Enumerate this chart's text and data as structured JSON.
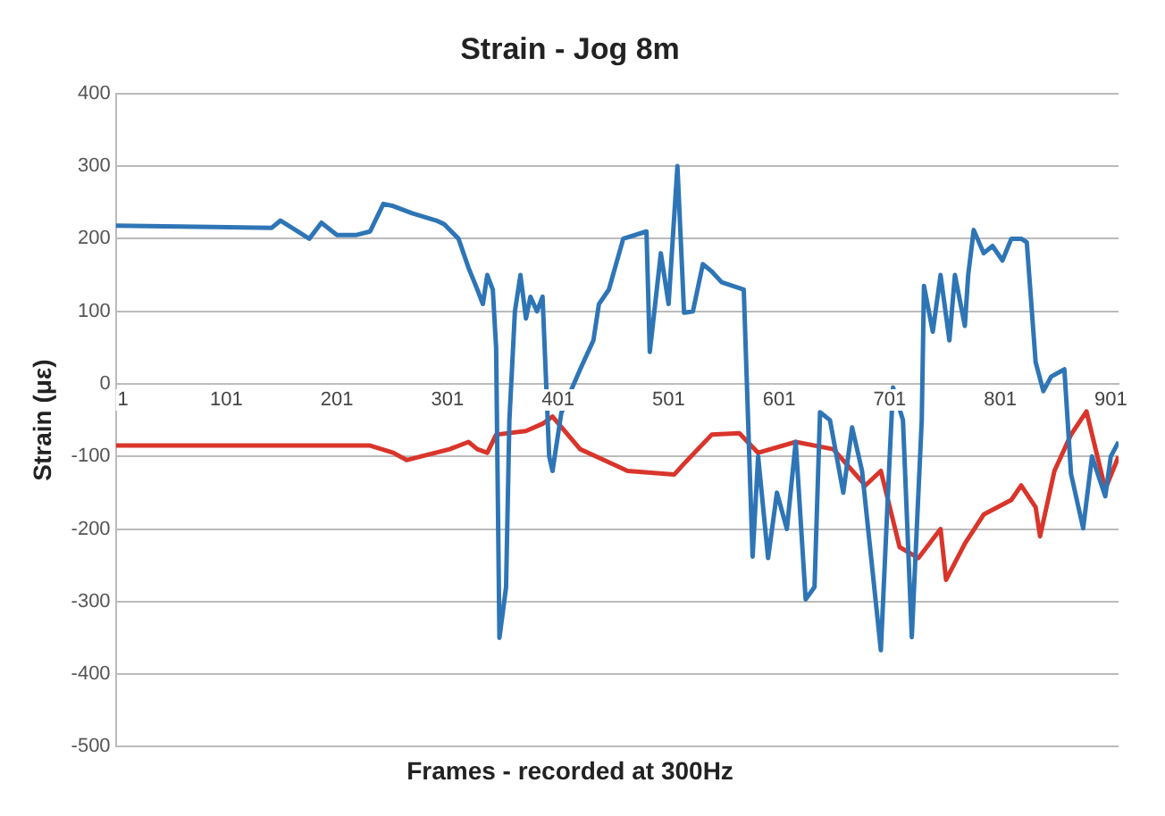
{
  "chart_data": {
    "type": "line",
    "title": "Strain - Jog 8m",
    "xlabel": "Frames - recorded at 300Hz",
    "ylabel": "Strain (με)",
    "xlim": [
      1,
      908
    ],
    "xticks": [
      1,
      101,
      201,
      301,
      401,
      501,
      601,
      701,
      801,
      901
    ],
    "ylim": [
      -500,
      400
    ],
    "yticks": [
      -500,
      -400,
      -300,
      -200,
      -100,
      0,
      100,
      200,
      300,
      400
    ],
    "grid": "y",
    "legend": false,
    "marker": "none",
    "series": [
      {
        "color": "#2e75b6",
        "x": [
          1,
          142,
          150,
          176,
          187,
          201,
          218,
          231,
          243,
          252,
          269,
          291,
          298,
          311,
          320,
          328,
          333,
          337,
          342,
          345,
          348,
          354,
          357,
          362,
          367,
          372,
          376,
          382,
          387,
          393,
          396,
          404,
          421,
          433,
          438,
          447,
          460,
          481,
          484,
          494,
          501,
          509,
          515,
          523,
          532,
          540,
          549,
          569,
          577,
          582,
          591,
          599,
          608,
          616,
          625,
          633,
          638,
          647,
          659,
          667,
          676,
          693,
          701,
          704,
          713,
          721,
          730,
          732,
          740,
          747,
          755,
          760,
          769,
          772,
          777,
          786,
          794,
          803,
          811,
          820,
          825,
          833,
          840,
          847,
          859,
          865,
          876,
          884,
          896,
          901,
          908
        ],
        "values": [
          218,
          215,
          225,
          200,
          222,
          205,
          205,
          210,
          248,
          245,
          235,
          225,
          220,
          200,
          160,
          130,
          110,
          150,
          130,
          50,
          -350,
          -280,
          -50,
          100,
          150,
          90,
          120,
          100,
          120,
          -100,
          -120,
          -40,
          20,
          60,
          110,
          130,
          200,
          210,
          44,
          180,
          110,
          300,
          98,
          100,
          165,
          155,
          140,
          130,
          -238,
          -100,
          -240,
          -150,
          -200,
          -80,
          -297,
          -280,
          -39,
          -50,
          -150,
          -60,
          -120,
          -367,
          -100,
          -5,
          -50,
          -349,
          -50,
          135,
          72,
          150,
          60,
          150,
          80,
          150,
          212,
          180,
          190,
          170,
          200,
          200,
          195,
          30,
          -10,
          10,
          20,
          -124,
          -199,
          -100,
          -155,
          -100,
          -80
        ]
      },
      {
        "color": "#d9352b",
        "x": [
          1,
          231,
          252,
          264,
          303,
          320,
          328,
          337,
          345,
          372,
          387,
          396,
          421,
          464,
          506,
          515,
          540,
          565,
          582,
          616,
          650,
          679,
          693,
          710,
          727,
          747,
          752,
          769,
          786,
          811,
          820,
          833,
          837,
          850,
          865,
          879,
          896,
          908
        ],
        "values": [
          -85,
          -85,
          -95,
          -105,
          -90,
          -80,
          -90,
          -95,
          -70,
          -65,
          -55,
          -45,
          -90,
          -120,
          -125,
          -110,
          -70,
          -68,
          -95,
          -80,
          -90,
          -140,
          -120,
          -225,
          -240,
          -200,
          -270,
          -220,
          -180,
          -160,
          -140,
          -170,
          -210,
          -120,
          -70,
          -38,
          -145,
          -100
        ]
      }
    ]
  }
}
